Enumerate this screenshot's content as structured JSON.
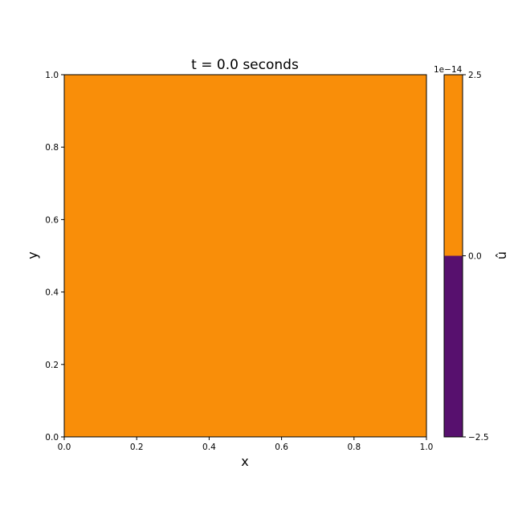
{
  "chart_data": {
    "type": "heatmap",
    "title": "t = 0.0 seconds",
    "xlabel": "x",
    "ylabel": "y",
    "xlim": [
      0.0,
      1.0
    ],
    "ylim": [
      0.0,
      1.0
    ],
    "x_ticks": [
      "0.0",
      "0.2",
      "0.4",
      "0.6",
      "0.8",
      "1.0"
    ],
    "y_ticks": [
      "0.0",
      "0.2",
      "0.4",
      "0.6",
      "0.8",
      "1.0"
    ],
    "field": {
      "description_value": 0.0,
      "fill_color": "#f98e09"
    },
    "colorbar": {
      "label": "û",
      "offset_text": "1e−14",
      "range": [
        -2.5,
        2.5
      ],
      "ticks": [
        "−2.5",
        "0.0",
        "2.5"
      ],
      "levels": [
        {
          "from": -2.5,
          "to": 0.0,
          "color": "#57106e"
        },
        {
          "from": 0.0,
          "to": 2.5,
          "color": "#f98e09"
        }
      ]
    },
    "grid": false
  }
}
